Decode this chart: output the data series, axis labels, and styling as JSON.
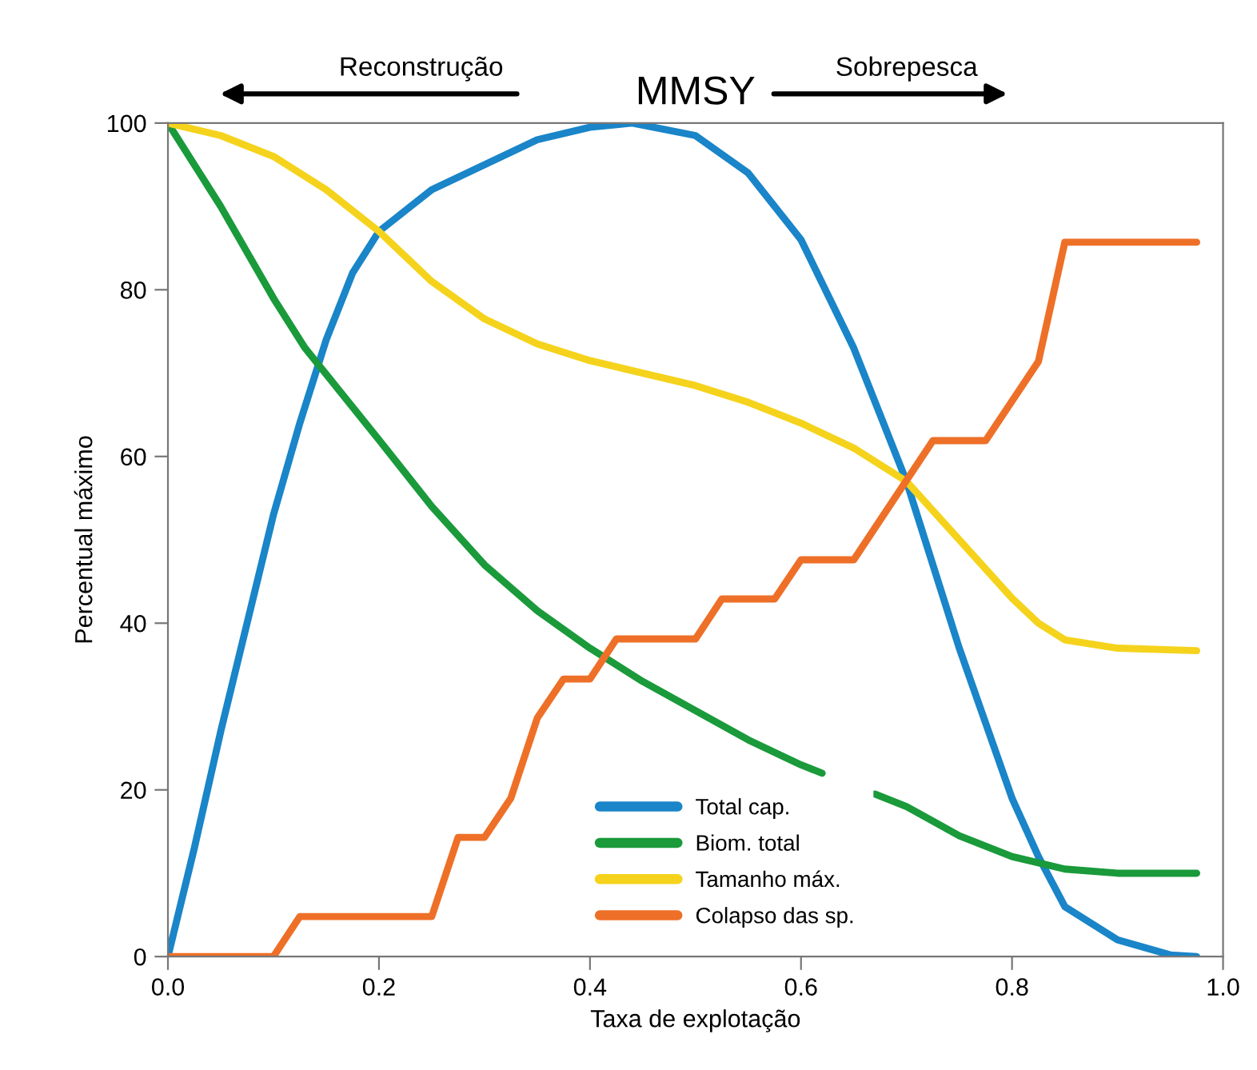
{
  "chart_data": {
    "type": "line",
    "xlabel": "Taxa de explotação",
    "ylabel": "Percentual máximo",
    "annotations": [
      "Reconstrução",
      "MMSY",
      "Sobrepesca"
    ],
    "xlim": [
      0,
      1
    ],
    "ylim": [
      0,
      100
    ],
    "xticks": [
      {
        "value": 0,
        "label": "0.0"
      },
      {
        "value": 0.2,
        "label": "0.2"
      },
      {
        "value": 0.4,
        "label": "0.4"
      },
      {
        "value": 0.6,
        "label": "0.6"
      },
      {
        "value": 0.8,
        "label": "0.8"
      },
      {
        "value": 1,
        "label": "1.0"
      }
    ],
    "yticks": [
      0,
      20,
      40,
      60,
      80,
      100
    ],
    "grid": false,
    "legend": "bottom",
    "marker": "none",
    "line_style": "solid",
    "series": [
      {
        "name": "Total cap.",
        "color": "#1a85c8",
        "x": [
          0,
          0.025,
          0.05,
          0.075,
          0.1,
          0.125,
          0.15,
          0.175,
          0.2,
          0.25,
          0.3,
          0.35,
          0.4,
          0.44,
          0.5,
          0.55,
          0.6,
          0.65,
          0.7,
          0.75,
          0.8,
          0.825,
          0.85,
          0.9,
          0.95,
          0.975
        ],
        "values": [
          0,
          13,
          27,
          40,
          53,
          64,
          74,
          82,
          87,
          92,
          95,
          98,
          99.5,
          100,
          98.5,
          94,
          86,
          73,
          57,
          37,
          19,
          12,
          6,
          2,
          0.2,
          0
        ]
      },
      {
        "name": "Biom. total",
        "color": "#1a9a3a",
        "x": [
          0,
          0.05,
          0.1,
          0.13,
          0.2,
          0.25,
          0.3,
          0.35,
          0.4,
          0.45,
          0.5,
          0.55,
          0.6,
          0.62,
          0.65,
          0.67,
          0.7,
          0.75,
          0.8,
          0.85,
          0.9,
          0.975
        ],
        "values": [
          100,
          90,
          79,
          73,
          62,
          54,
          47,
          41.5,
          37,
          33,
          29.5,
          26,
          23,
          22,
          null,
          19.5,
          18,
          14.5,
          12,
          10.5,
          10,
          10
        ]
      },
      {
        "name": "Tamanho máx.",
        "color": "#f5d31c",
        "x": [
          0,
          0.05,
          0.1,
          0.15,
          0.2,
          0.25,
          0.3,
          0.35,
          0.4,
          0.45,
          0.5,
          0.55,
          0.6,
          0.65,
          0.7,
          0.75,
          0.8,
          0.825,
          0.85,
          0.9,
          0.975
        ],
        "values": [
          100,
          98.5,
          96,
          92,
          87,
          81,
          76.5,
          73.5,
          71.5,
          70,
          68.5,
          66.5,
          64,
          61,
          57,
          50,
          43,
          40,
          38,
          37,
          36.7
        ]
      },
      {
        "name": "Colapso das sp.",
        "color": "#ee7028",
        "x": [
          0,
          0.1,
          0.125,
          0.25,
          0.275,
          0.3,
          0.325,
          0.35,
          0.375,
          0.4,
          0.425,
          0.5,
          0.525,
          0.575,
          0.6,
          0.65,
          0.725,
          0.775,
          0.825,
          0.85,
          0.975
        ],
        "values": [
          0,
          0,
          4.8,
          4.8,
          14.3,
          14.3,
          19,
          28.6,
          33.3,
          33.3,
          38.1,
          38.1,
          42.9,
          42.9,
          47.6,
          47.6,
          61.9,
          61.9,
          71.4,
          85.7,
          85.7
        ]
      }
    ]
  }
}
